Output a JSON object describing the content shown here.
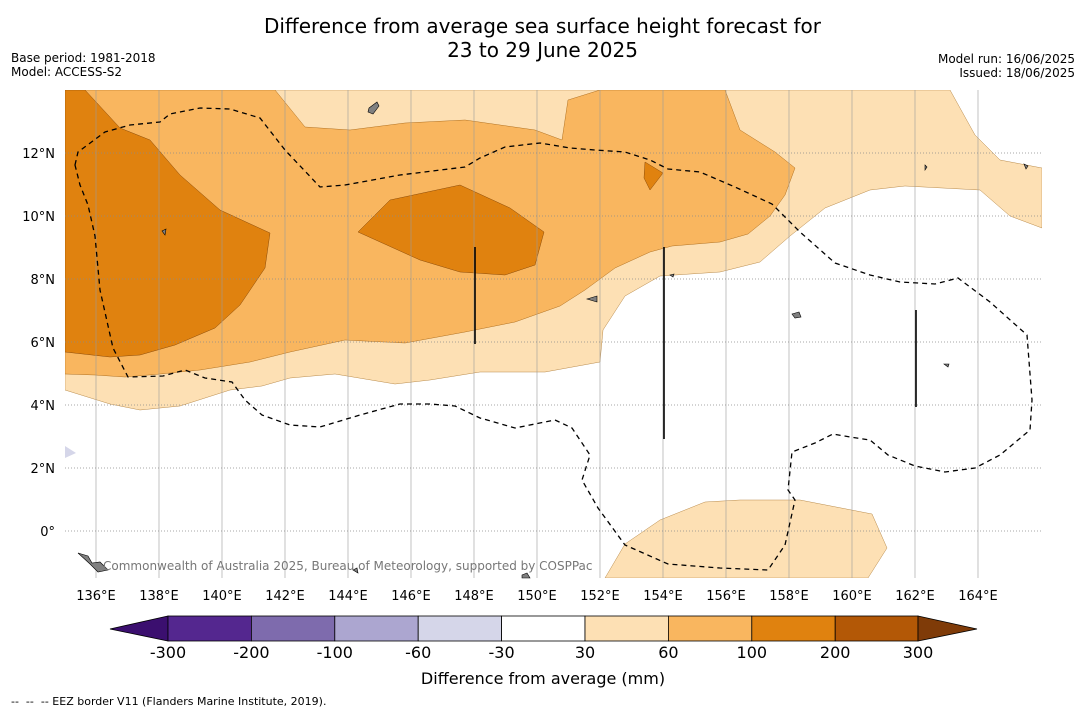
{
  "title_line1": "Difference from average sea surface height forecast for",
  "title_line2": "23 to 29 June 2025",
  "meta_left": [
    "Base period: 1981-2018",
    "Model: ACCESS-S2"
  ],
  "meta_right": [
    "Model run: 16/06/2025",
    "Issued: 18/06/2025"
  ],
  "lon_labels": [
    "136°E",
    "138°E",
    "140°E",
    "142°E",
    "144°E",
    "146°E",
    "148°E",
    "150°E",
    "152°E",
    "154°E",
    "156°E",
    "158°E",
    "160°E",
    "162°E",
    "164°E"
  ],
  "lat_labels": [
    "12°N",
    "10°N",
    "8°N",
    "6°N",
    "4°N",
    "2°N",
    "0°"
  ],
  "copyright": "Commonwealth of Australia 2025, Bureau of Meteorology, supported by COSPPac",
  "colorbar": {
    "ticks": [
      "-300",
      "-200",
      "-100",
      "-60",
      "-30",
      "30",
      "60",
      "100",
      "200",
      "300"
    ],
    "colors": [
      "#3b0f6f",
      "#54278f",
      "#7e6bad",
      "#aca6d0",
      "#d5d6e9",
      "#ffffff",
      "#fde0b4",
      "#f9b65f",
      "#e0820f",
      "#b35806",
      "#7f3b08"
    ],
    "label": "Difference from average (mm)"
  },
  "footnote": "--  --  -- EEZ border V11 (Flanders Marine Institute, 2019)."
}
